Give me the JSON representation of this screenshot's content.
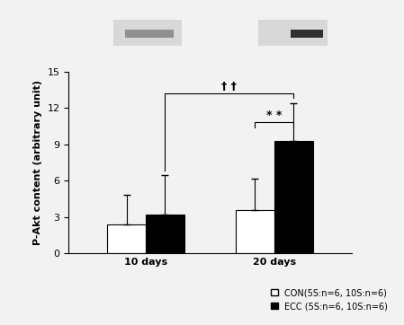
{
  "chart_data": {
    "type": "bar",
    "y_label": "P-Akt content (arbitrary unit)",
    "categories": [
      "10 days",
      "20 days"
    ],
    "series": [
      {
        "name": "CON(5S:n=6, 10S:n=6)",
        "color": "#ffffff",
        "values": [
          2.4,
          3.6
        ],
        "errors": [
          2.4,
          2.6
        ]
      },
      {
        "name": "ECC (5S:n=6, 10S:n=6)",
        "color": "#000000",
        "values": [
          3.2,
          9.3
        ],
        "errors": [
          3.3,
          3.1
        ]
      }
    ],
    "ylim": [
      0,
      15
    ],
    "yticks": [
      0,
      3,
      6,
      9,
      12,
      15
    ],
    "legend": "lower right",
    "annotations": [
      {
        "text": "* *",
        "between": [
          [
            "20 days",
            "CON(5S:n=6, 10S:n=6)"
          ],
          [
            "20 days",
            "ECC (5S:n=6, 10S:n=6)"
          ]
        ]
      },
      {
        "text": "† †",
        "between": [
          [
            "10 days",
            "ECC (5S:n=6, 10S:n=6)"
          ],
          [
            "20 days",
            "ECC (5S:n=6, 10S:n=6)"
          ]
        ]
      }
    ]
  }
}
